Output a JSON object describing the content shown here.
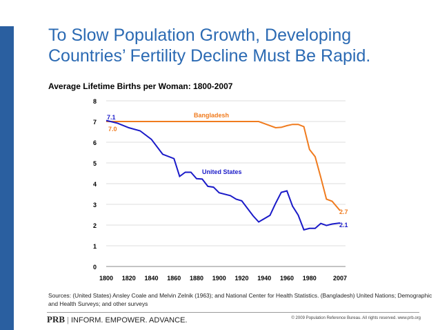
{
  "slide": {
    "title_line1": "To Slow Population Growth, Developing",
    "title_line2": "Countries’ Fertility Decline Must Be Rapid.",
    "sources": "Sources: (United States) Ansley Coale and Melvin Zelnik (1963); and National Center for Health Statistics. (Bangladesh) United Nations; Demographic and Health Surveys; and other surveys",
    "logo": "PRB",
    "tagline": "INFORM. EMPOWER. ADVANCE.",
    "copyright": "© 2009 Population Reference Bureau. All rights reserved. www.prb.org",
    "accent_color": "#2b6ab3"
  },
  "chart_data": {
    "type": "line",
    "title": "Average Lifetime Births per Woman: 1800-2007",
    "xlim": [
      1800,
      2007
    ],
    "ylim": [
      0,
      8
    ],
    "x_ticks": [
      "1800",
      "1820",
      "1840",
      "1860",
      "1880",
      "1900",
      "1920",
      "1940",
      "1960",
      "1980",
      "2007"
    ],
    "y_ticks": [
      "0",
      "1",
      "2",
      "3",
      "4",
      "5",
      "6",
      "7",
      "8"
    ],
    "grid": "horizontal",
    "series": [
      {
        "name": "United States",
        "color": "#1a1ac8",
        "start_label": "7.1",
        "end_label": "2.1",
        "x": [
          1800,
          1810,
          1820,
          1830,
          1840,
          1850,
          1860,
          1865,
          1870,
          1875,
          1880,
          1885,
          1890,
          1895,
          1900,
          1910,
          1915,
          1920,
          1930,
          1935,
          1945,
          1950,
          1955,
          1960,
          1965,
          1970,
          1975,
          1980,
          1985,
          1990,
          1995,
          2000,
          2007
        ],
        "y": [
          7.05,
          6.92,
          6.7,
          6.55,
          6.14,
          5.42,
          5.21,
          4.35,
          4.55,
          4.55,
          4.24,
          4.22,
          3.87,
          3.83,
          3.56,
          3.42,
          3.25,
          3.17,
          2.45,
          2.15,
          2.47,
          3.05,
          3.58,
          3.65,
          2.91,
          2.48,
          1.77,
          1.84,
          1.84,
          2.08,
          1.98,
          2.05,
          2.1
        ]
      },
      {
        "name": "Bangladesh",
        "color": "#f07b1e",
        "start_label": "7.0",
        "end_label": "2.7",
        "x": [
          1800,
          1935,
          1950,
          1955,
          1960,
          1965,
          1970,
          1975,
          1980,
          1985,
          1990,
          1995,
          2000,
          2007
        ],
        "y": [
          7.0,
          7.0,
          6.7,
          6.72,
          6.8,
          6.86,
          6.86,
          6.75,
          5.65,
          5.3,
          4.3,
          3.25,
          3.15,
          2.7
        ]
      }
    ]
  }
}
